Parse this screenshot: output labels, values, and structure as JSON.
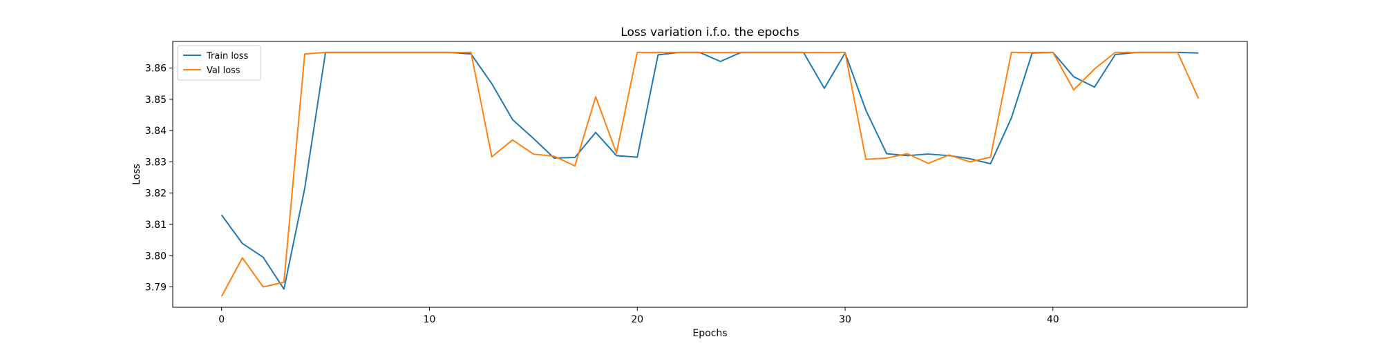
{
  "chart_data": {
    "type": "line",
    "title": "Loss variation i.f.o. the epochs",
    "xlabel": "Epochs",
    "ylabel": "Loss",
    "xlim": [
      -2.35,
      49.35
    ],
    "ylim": [
      3.7835,
      3.8685
    ],
    "xticks": [
      0,
      10,
      20,
      30,
      40
    ],
    "yticks": [
      3.79,
      3.8,
      3.81,
      3.82,
      3.83,
      3.84,
      3.85,
      3.86
    ],
    "grid": false,
    "legend_position": "top-left",
    "x": [
      0,
      1,
      2,
      3,
      4,
      5,
      6,
      7,
      8,
      9,
      10,
      11,
      12,
      13,
      14,
      15,
      16,
      17,
      18,
      19,
      20,
      21,
      22,
      23,
      24,
      25,
      26,
      27,
      28,
      29,
      30,
      31,
      32,
      33,
      34,
      35,
      36,
      37,
      38,
      39,
      40,
      41,
      42,
      43,
      44,
      45,
      46,
      47
    ],
    "series": [
      {
        "name": "Train loss",
        "color": "#1f77b4",
        "values": [
          3.813,
          3.8039,
          3.7995,
          3.7893,
          3.8215,
          3.865,
          3.865,
          3.865,
          3.865,
          3.865,
          3.865,
          3.865,
          3.8645,
          3.855,
          3.8435,
          3.8375,
          3.8312,
          3.8314,
          3.8394,
          3.832,
          3.8315,
          3.8642,
          3.865,
          3.865,
          3.8621,
          3.865,
          3.865,
          3.865,
          3.865,
          3.8535,
          3.8648,
          3.8465,
          3.8326,
          3.832,
          3.8325,
          3.832,
          3.831,
          3.8294,
          3.844,
          3.8648,
          3.865,
          3.8572,
          3.8539,
          3.8643,
          3.865,
          3.865,
          3.865,
          3.8648
        ]
      },
      {
        "name": "Val loss",
        "color": "#ff7f0e",
        "values": [
          3.787,
          3.7993,
          3.79,
          3.7915,
          3.8645,
          3.865,
          3.865,
          3.865,
          3.865,
          3.865,
          3.865,
          3.865,
          3.865,
          3.8316,
          3.837,
          3.8325,
          3.8318,
          3.8287,
          3.8508,
          3.8328,
          3.865,
          3.865,
          3.865,
          3.865,
          3.865,
          3.865,
          3.865,
          3.865,
          3.865,
          3.865,
          3.865,
          3.8308,
          3.8312,
          3.8326,
          3.8295,
          3.8322,
          3.83,
          3.8315,
          3.865,
          3.865,
          3.865,
          3.853,
          3.8597,
          3.865,
          3.865,
          3.865,
          3.865,
          3.8503
        ]
      }
    ]
  }
}
